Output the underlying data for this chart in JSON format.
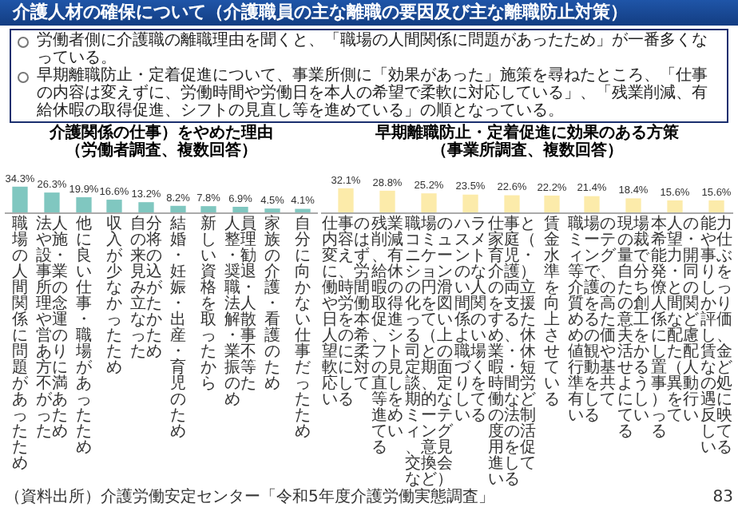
{
  "chart_data": [
    {
      "type": "other",
      "title": "介護人材の確保について（介護職員の主な離職の要因及び主な離職防止対策）",
      "annotations": [
        "労働者側に介護職の離職理由を聞くと、「職場の人間関係に問題があったため」が一番多くなっている。",
        "早期離職防止・定着促進について、事業所側に「効果があった」施策を尋ねたところ、「仕事の内容は変えずに、労働時間や労働日を本人の希望で柔軟に対応している」、「残業削減、有給休暇の取得促進、シフトの見直し等を進めている」の順となっている。"
      ]
    },
    {
      "type": "bar",
      "title": "介護関係の仕事）をやめた理由",
      "subtitle": "（労働者調査、複数回答）",
      "categories": [
        "職場の人間関係に問題があったため",
        "法人や施設・事業所の理念や運営のあり方に不満があったため",
        "他に良い仕事・職場があったため",
        "収入が少なかったため",
        "自分の将来の見込みが立たなかったため",
        "結婚・妊娠・出産・育児のため",
        "新しい資格を取ったから",
        "人員整理・勧奨退職・法人解散・事業不振等のため",
        "家族の介護・看護のため",
        "自分に向かない仕事だったため"
      ],
      "values": [
        34.3,
        26.3,
        19.9,
        16.6,
        13.2,
        8.2,
        7.8,
        6.9,
        4.5,
        4.1
      ],
      "value_labels": [
        "34.3%",
        "26.3%",
        "19.9%",
        "16.6%",
        "13.2%",
        "8.2%",
        "7.8%",
        "6.9%",
        "4.5%",
        "4.1%"
      ],
      "color": "#80c7c0",
      "annotations": [
        "（資料出所）介護労働安定センター「令和5年度介護労働実態調査」"
      ]
    },
    {
      "type": "bar",
      "title": "早期離職防止・定着促進に効果のある方策",
      "subtitle": "（事業所調査、複数回答）",
      "categories": [
        "仕事の内容は変えずに、労働時間や労働日を本人の希望に柔軟に対応している",
        "残業削減、有給休暇の取得促進、シフトの見直し等を進めている",
        "職場のコミュニケーションの円滑化を図っている（上司との定期面談、定期的なミーティング、意見交換会など）",
        "ハラスメントのない人間関係のよい職場づくりをしている",
        "仕事と家庭（育児・介護）の両立を支援するため、休業・休暇・短時間労働などの法制度の活用を促進している",
        "賃金水準を向上させている",
        "職場のミーティング等で、介護の質を高めるための価値観や行動基準を共有している",
        "現場の裁量で自分たちの創意工夫を活かせるようにしている",
        "本人の希望・能力開発・同僚との人間関係などに配慮した配置（人事異動）を行っている",
        "能力や仕事ぶりをしっかり評価し、賃金などの処遇に反映している"
      ],
      "values": [
        32.1,
        28.8,
        25.2,
        23.5,
        22.6,
        22.2,
        21.4,
        18.4,
        15.6,
        15.6
      ],
      "value_labels": [
        "32.1%",
        "28.8%",
        "25.2%",
        "23.5%",
        "22.6%",
        "22.2%",
        "21.4%",
        "18.4%",
        "15.6%",
        "15.6%"
      ],
      "color": "#fcebaa",
      "annotations": [
        "83"
      ]
    }
  ]
}
